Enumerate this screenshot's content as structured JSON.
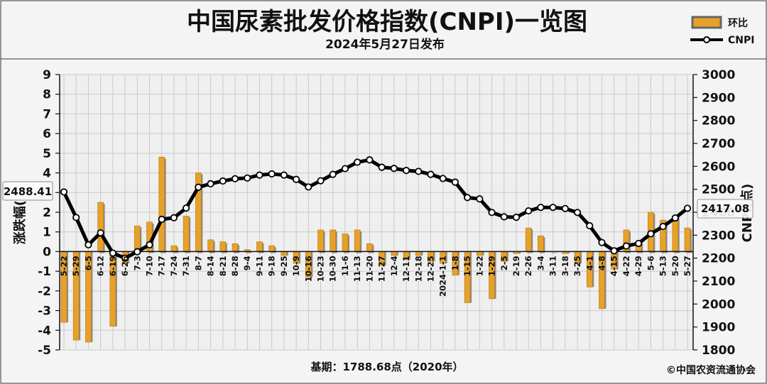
{
  "header": {
    "title": "中国尿素批发价格指数(CNPI)一览图",
    "subtitle": "2024年5月27日发布"
  },
  "legend": {
    "bar_label": "环比",
    "line_label": "CNPI"
  },
  "footer": {
    "base_note": "基期：1788.68点（2020年）",
    "copyright": "©中国农资流通协会"
  },
  "annotations": {
    "first_value": "2488.41",
    "last_value": "2417.08"
  },
  "colors": {
    "bar": "#e7a129",
    "line": "#000000",
    "plot_bg": "#efefef",
    "frame_bg": "#f4f4f4"
  },
  "chart_data": {
    "type": "bar+line",
    "ylabel": "涨跌幅(%)",
    "y2label": "CNPI(点)",
    "ylim": [
      -5,
      9
    ],
    "y2lim": [
      1800,
      3000
    ],
    "y_ticks": [
      -5,
      -4,
      -3,
      -2,
      -1,
      0,
      1,
      2,
      3,
      4,
      5,
      6,
      7,
      8,
      9
    ],
    "y2_ticks": [
      1800,
      1900,
      2000,
      2100,
      2200,
      2300,
      2400,
      2500,
      2600,
      2700,
      2800,
      2900,
      3000
    ],
    "grid": true,
    "legend_position": "top-right",
    "categories": [
      "5-22",
      "5-29",
      "6-5",
      "6-12",
      "6-19",
      "6-26",
      "7-3",
      "7-10",
      "7-17",
      "7-24",
      "7-31",
      "8-7",
      "8-14",
      "8-21",
      "8-28",
      "9-4",
      "9-11",
      "9-18",
      "9-25",
      "10-9",
      "10-16",
      "10-23",
      "10-30",
      "11-6",
      "11-13",
      "11-20",
      "11-27",
      "12-4",
      "12-11",
      "12-18",
      "12-25",
      "2024-1-1",
      "1-8",
      "1-15",
      "1-22",
      "1-29",
      "2-5",
      "2-19",
      "2-26",
      "3-4",
      "3-11",
      "3-18",
      "3-25",
      "4-1",
      "4-8",
      "4-15",
      "4-22",
      "4-29",
      "5-6",
      "5-13",
      "5-20",
      "5-27"
    ],
    "series": [
      {
        "name": "环比",
        "type": "bar",
        "axis": "left",
        "values": [
          -3.6,
          -4.5,
          -4.6,
          2.5,
          -3.8,
          -0.6,
          1.3,
          1.5,
          4.8,
          0.3,
          1.8,
          4.0,
          0.6,
          0.5,
          0.4,
          0.1,
          0.5,
          0.3,
          -0.2,
          -0.6,
          -1.3,
          1.1,
          1.1,
          0.9,
          1.1,
          0.4,
          -0.7,
          -0.2,
          -0.4,
          -0.2,
          -0.5,
          -0.6,
          -1.2,
          -2.6,
          -0.2,
          -2.4,
          -0.5,
          -0.1,
          1.2,
          0.8,
          0.0,
          -0.1,
          -0.6,
          -1.8,
          -2.9,
          -0.9,
          1.1,
          0.5,
          2.0,
          1.6,
          1.8,
          1.2
        ]
      },
      {
        "name": "CNPI",
        "type": "line",
        "axis": "right",
        "values": [
          2488.41,
          2377,
          2258,
          2310,
          2222,
          2200,
          2228,
          2258,
          2369,
          2376,
          2418,
          2509,
          2524,
          2536,
          2546,
          2549,
          2562,
          2567,
          2562,
          2543,
          2510,
          2537,
          2565,
          2590,
          2618,
          2628,
          2596,
          2591,
          2582,
          2578,
          2565,
          2547,
          2531,
          2464,
          2458,
          2399,
          2380,
          2378,
          2406,
          2421,
          2421,
          2416,
          2399,
          2341,
          2268,
          2232,
          2253,
          2264,
          2306,
          2338,
          2375,
          2417.08
        ]
      }
    ]
  }
}
